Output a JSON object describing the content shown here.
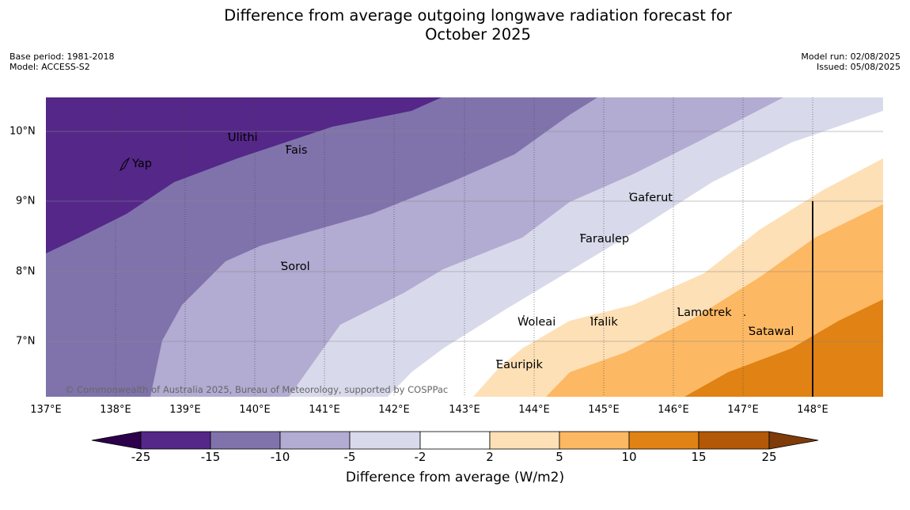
{
  "title": "Difference from average outgoing longwave radiation forecast for",
  "title_line2": "October 2025",
  "meta_left": [
    "Base period: 1981-2018",
    "Model: ACCESS-S2"
  ],
  "meta_right": [
    "Model run: 02/08/2025",
    "Issued: 05/08/2025"
  ],
  "copyright": "© Commonwealth of Australia 2025, Bureau of Meteorology, supported by COSPPac",
  "colorbar": {
    "title": "Difference from average (W/m2)",
    "ticks": [
      "-25",
      "-15",
      "-10",
      "-5",
      "-2",
      "2",
      "5",
      "10",
      "15",
      "25"
    ],
    "colors": [
      "#2d004b",
      "#542788",
      "#8073ac",
      "#b2abd2",
      "#d8daeb",
      "#ffffff",
      "#fee0b6",
      "#fdb863",
      "#e08214",
      "#b35806",
      "#7f3b08"
    ]
  },
  "lat_labels": [
    "10°N",
    "9°N",
    "8°N",
    "7°N"
  ],
  "lon_labels": [
    "137°E",
    "138°E",
    "139°E",
    "140°E",
    "141°E",
    "142°E",
    "143°E",
    "144°E",
    "145°E",
    "146°E",
    "147°E",
    "148°E"
  ],
  "places": [
    "Ulithi",
    "Yap",
    "Fais",
    "Gaferut",
    "Faraulep",
    "Sorol",
    "Woleai",
    "Ifalik",
    "Lamotrek",
    "Satawal",
    "Eauripik"
  ]
}
